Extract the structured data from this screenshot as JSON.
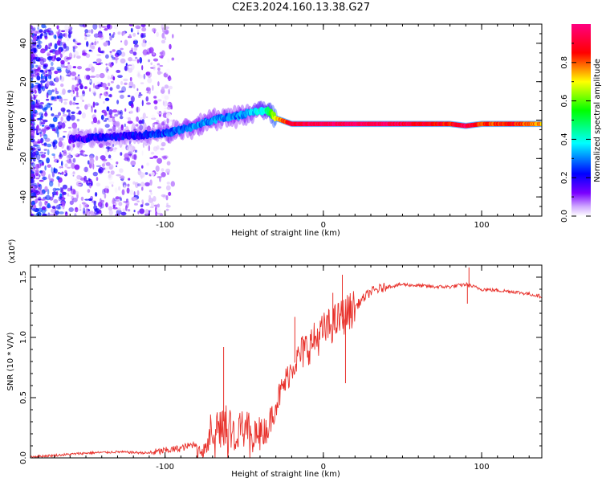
{
  "figure": {
    "title": "C2E3.2024.160.13.38.G27"
  },
  "chart_data": [
    {
      "type": "heatmap",
      "name": "spectrogram",
      "xlabel": "Height of straight line (km)",
      "ylabel": "Frequency (Hz)",
      "xlim": [
        -185,
        138
      ],
      "ylim": [
        -50,
        50
      ],
      "xticks": [
        -100,
        0,
        100
      ],
      "xtick_labels": [
        "-100",
        "0",
        "100"
      ],
      "yticks": [
        40,
        20,
        0,
        -20,
        -40
      ],
      "ytick_labels": [
        "40",
        "20",
        "0",
        "-20",
        "-40"
      ],
      "colorbar": {
        "label": "Normalized spectral amplitude",
        "range": [
          0,
          1
        ],
        "ticks": [
          0.0,
          0.2,
          0.4,
          0.6,
          0.8
        ],
        "tick_labels": [
          "0.0",
          "0.2",
          "0.4",
          "0.6",
          "0.8"
        ],
        "stops": [
          "#ffffff",
          "#7a00ff",
          "#0000ff",
          "#00ffff",
          "#00ff00",
          "#ffff00",
          "#ff0000",
          "#ff0080"
        ]
      },
      "ridge": {
        "x": [
          -160,
          -140,
          -120,
          -100,
          -85,
          -70,
          -55,
          -45,
          -35,
          -30,
          -20,
          0,
          20,
          40,
          60,
          80,
          90,
          100,
          120,
          138
        ],
        "y": [
          -10,
          -9,
          -8,
          -7,
          -4,
          0,
          2,
          4,
          5,
          1,
          -2,
          -2,
          -2,
          -2,
          -2,
          -2,
          -3,
          -2,
          -2,
          -2
        ],
        "amplitude": [
          0.15,
          0.2,
          0.2,
          0.25,
          0.3,
          0.3,
          0.3,
          0.35,
          0.45,
          0.7,
          0.9,
          0.95,
          0.95,
          0.95,
          0.9,
          0.85,
          0.95,
          0.8,
          0.85,
          0.75
        ]
      }
    },
    {
      "type": "line",
      "name": "snr",
      "xlabel": "Height of straight line (km)",
      "ylabel": "SNR (10 * V/V)",
      "y_multiplier": "(x10⁴)",
      "xlim": [
        -185,
        138
      ],
      "ylim": [
        0,
        1.6
      ],
      "xticks": [
        -100,
        0,
        100
      ],
      "xtick_labels": [
        "-100",
        "0",
        "100"
      ],
      "yticks": [
        0.0,
        0.5,
        1.0,
        1.5
      ],
      "ytick_labels": [
        "0.0",
        "0.5",
        "1.0",
        "1.5"
      ],
      "color": "#e8302a",
      "series": [
        {
          "name": "SNR",
          "x": [
            -185,
            -170,
            -150,
            -130,
            -110,
            -100,
            -90,
            -80,
            -75,
            -70,
            -65,
            -60,
            -55,
            -50,
            -45,
            -40,
            -35,
            -30,
            -25,
            -20,
            -15,
            -10,
            -5,
            0,
            5,
            10,
            15,
            20,
            25,
            30,
            40,
            50,
            60,
            70,
            80,
            90,
            100,
            110,
            120,
            130,
            138
          ],
          "y": [
            0.01,
            0.02,
            0.04,
            0.05,
            0.04,
            0.06,
            0.08,
            0.12,
            0.18,
            0.25,
            0.32,
            0.28,
            0.25,
            0.22,
            0.2,
            0.2,
            0.25,
            0.45,
            0.6,
            0.75,
            0.85,
            0.92,
            0.98,
            1.05,
            1.1,
            1.15,
            1.2,
            1.25,
            1.32,
            1.38,
            1.42,
            1.44,
            1.43,
            1.42,
            1.42,
            1.44,
            1.4,
            1.39,
            1.38,
            1.36,
            1.34
          ]
        }
      ],
      "noise_spikes": [
        {
          "x": -63,
          "y": 0.92
        },
        {
          "x": -18,
          "y": 1.17
        },
        {
          "x": 6,
          "y": 1.37
        },
        {
          "x": 12,
          "y": 1.52
        },
        {
          "x": 14,
          "y": 0.62
        },
        {
          "x": 92,
          "y": 1.58
        },
        {
          "x": 91,
          "y": 1.28
        }
      ]
    }
  ]
}
